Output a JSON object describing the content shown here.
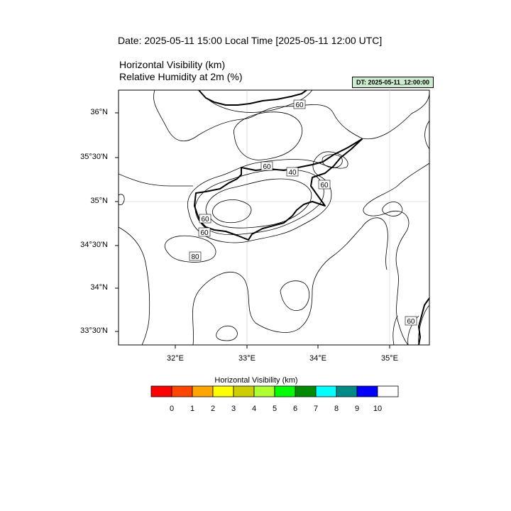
{
  "title": "Date: 2025-05-11  15:00 Local Time [2025-05-11  12:00 UTC]",
  "subtitle_1": "Horizontal Visibility   (km)",
  "subtitle_2": "Relative Humidity at 2m   (%)",
  "datetime_box": "DT: 2025-05-11_12:00:00",
  "lat_labels": [
    "36°N",
    "35°30'N",
    "35°N",
    "34°30'N",
    "34°N",
    "33°30'N"
  ],
  "lon_labels": [
    "32°E",
    "33°E",
    "34°E",
    "35°E"
  ],
  "contour_labels": [
    "60",
    "60",
    "40",
    "60",
    "60",
    "60",
    "80",
    "60"
  ],
  "legend": {
    "title": "Horizontal Visibility  (km)",
    "ticks": [
      "0",
      "1",
      "2",
      "3",
      "4",
      "5",
      "6",
      "7",
      "8",
      "9",
      "10"
    ],
    "colors": [
      "#ff0000",
      "#ff4500",
      "#ffa500",
      "#ffff00",
      "#cdcd00",
      "#adff2f",
      "#00ff00",
      "#008b00",
      "#00ffff",
      "#008b8b",
      "#0000ff",
      "#ffffff"
    ]
  }
}
